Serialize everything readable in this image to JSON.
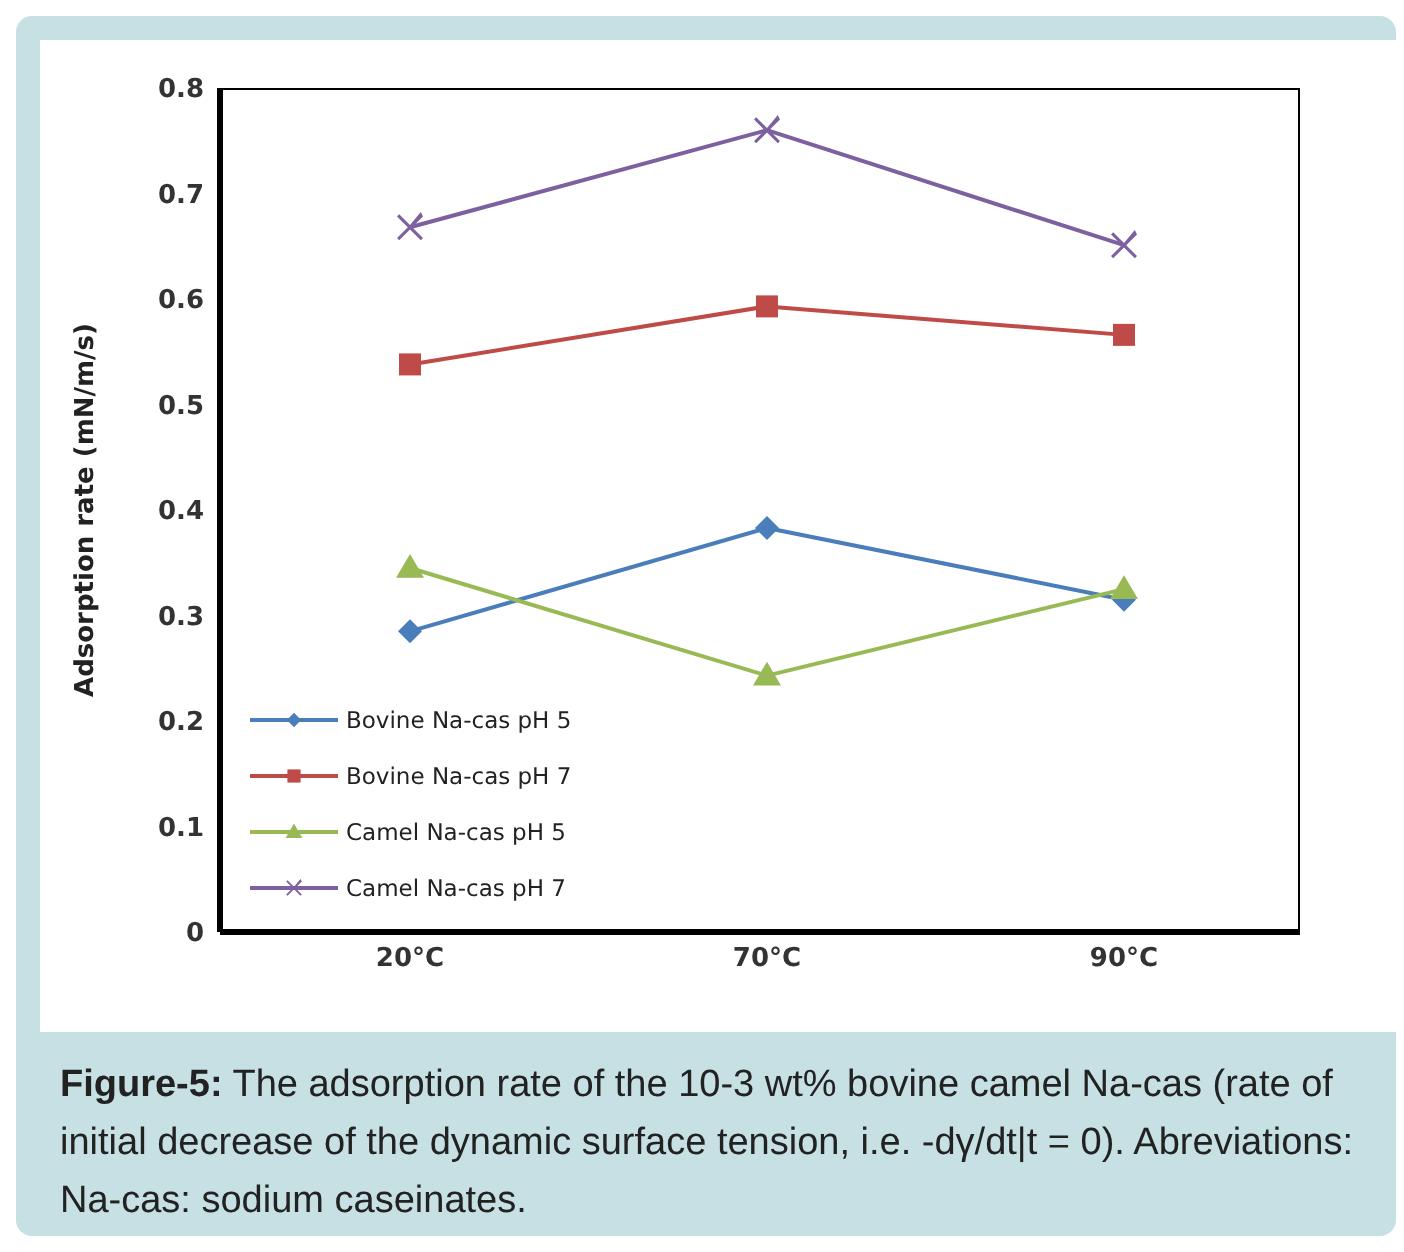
{
  "chart_data": {
    "type": "line",
    "ylabel": "Adsorption rate (mN/m/s)",
    "categories": [
      "20°C",
      "70°C",
      "90°C"
    ],
    "ylim": [
      0,
      0.8
    ],
    "yticks": [
      0,
      0.1,
      0.2,
      0.3,
      0.4,
      0.5,
      0.6,
      0.7,
      0.8
    ],
    "grid": false,
    "legend": "bottom left",
    "series": [
      {
        "name": "Bovine Na-cas pH 5",
        "color": "#4a7ebb",
        "marker": "diamond",
        "values": [
          0.285,
          0.383,
          0.315
        ]
      },
      {
        "name": "Bovine Na-cas pH 7",
        "color": "#be4b48",
        "marker": "square",
        "values": [
          0.538,
          0.593,
          0.566
        ]
      },
      {
        "name": "Camel Na-cas pH 5",
        "color": "#98b954",
        "marker": "triangle",
        "values": [
          0.345,
          0.243,
          0.325
        ]
      },
      {
        "name": "Camel Na-cas pH 7",
        "color": "#7d60a0",
        "marker": "cross",
        "values": [
          0.668,
          0.76,
          0.651
        ]
      }
    ],
    "annotations": [
      "Figure-5: The adsorption rate of the 10-3 wt% bovine camel Na-cas (rate of initial decrease of the dynamic surface tension, i.e. -dγ/dt|t = 0). Abreviations: Na-cas: sodium caseinates."
    ]
  }
}
